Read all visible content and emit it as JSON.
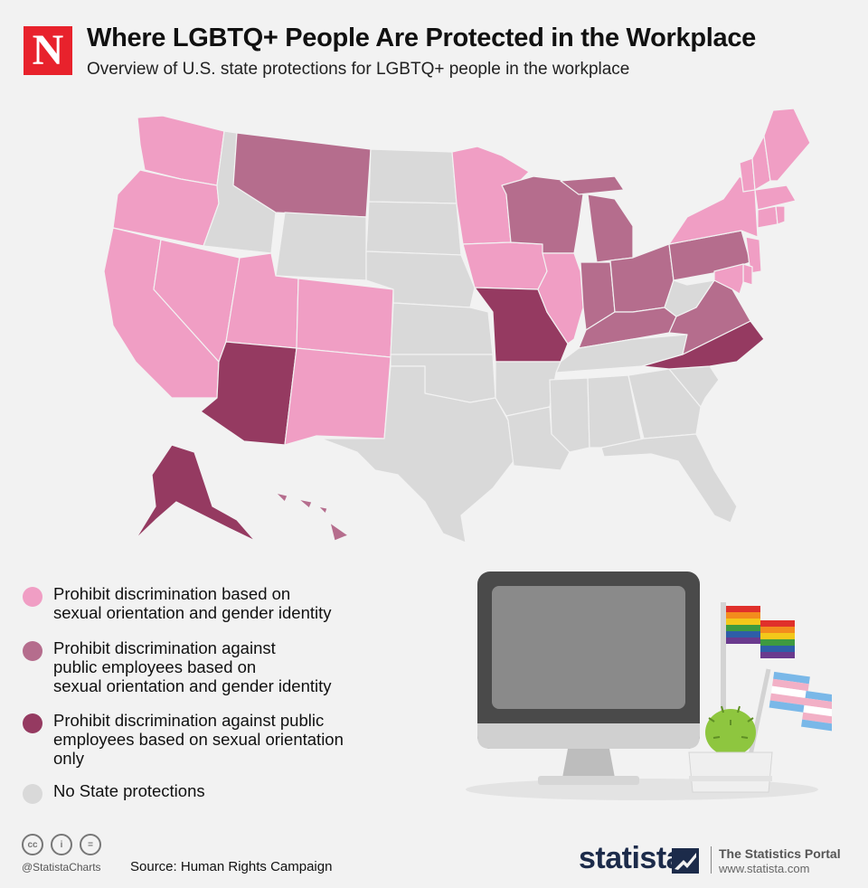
{
  "header": {
    "logo_letter": "N",
    "title": "Where LGBTQ+ People Are Protected in the Workplace",
    "subtitle": "Overview of U.S. state protections for LGBTQ+ people in the workplace"
  },
  "colors": {
    "full": "#f09ec4",
    "public_both": "#b56d8d",
    "public_orientation": "#953a61",
    "none": "#d9d9d9",
    "logo": "#e8222c"
  },
  "legend": [
    {
      "key": "full",
      "label": "Prohibit discrimination based on\nsexual orientation and gender identity"
    },
    {
      "key": "public_both",
      "label": "Prohibit discrimination against\npublic employees based on\nsexual orientation and gender identity"
    },
    {
      "key": "public_orientation",
      "label": "Prohibit discrimination against public\nemployees based on sexual orientation\nonly"
    },
    {
      "key": "none",
      "label": "No State protections"
    }
  ],
  "states": [
    {
      "id": "WA",
      "status": "full"
    },
    {
      "id": "OR",
      "status": "full"
    },
    {
      "id": "CA",
      "status": "full"
    },
    {
      "id": "NV",
      "status": "full"
    },
    {
      "id": "UT",
      "status": "full"
    },
    {
      "id": "CO",
      "status": "full"
    },
    {
      "id": "NM",
      "status": "full"
    },
    {
      "id": "MN",
      "status": "full"
    },
    {
      "id": "IA",
      "status": "full"
    },
    {
      "id": "IL",
      "status": "full"
    },
    {
      "id": "NY",
      "status": "full"
    },
    {
      "id": "VT",
      "status": "full"
    },
    {
      "id": "NH",
      "status": "full"
    },
    {
      "id": "ME",
      "status": "full"
    },
    {
      "id": "MA",
      "status": "full"
    },
    {
      "id": "CT",
      "status": "full"
    },
    {
      "id": "RI",
      "status": "full"
    },
    {
      "id": "NJ",
      "status": "full"
    },
    {
      "id": "DE",
      "status": "full"
    },
    {
      "id": "MD",
      "status": "full"
    },
    {
      "id": "MT",
      "status": "public_both"
    },
    {
      "id": "WI",
      "status": "public_both"
    },
    {
      "id": "MI",
      "status": "public_both"
    },
    {
      "id": "IN",
      "status": "public_both"
    },
    {
      "id": "OH",
      "status": "public_both"
    },
    {
      "id": "KY",
      "status": "public_both"
    },
    {
      "id": "PA",
      "status": "public_both"
    },
    {
      "id": "VA",
      "status": "public_both"
    },
    {
      "id": "HI",
      "status": "public_both"
    },
    {
      "id": "AZ",
      "status": "public_orientation"
    },
    {
      "id": "MO",
      "status": "public_orientation"
    },
    {
      "id": "NC",
      "status": "public_orientation"
    },
    {
      "id": "AK",
      "status": "public_orientation"
    },
    {
      "id": "ID",
      "status": "none"
    },
    {
      "id": "WY",
      "status": "none"
    },
    {
      "id": "ND",
      "status": "none"
    },
    {
      "id": "SD",
      "status": "none"
    },
    {
      "id": "NE",
      "status": "none"
    },
    {
      "id": "KS",
      "status": "none"
    },
    {
      "id": "OK",
      "status": "none"
    },
    {
      "id": "TX",
      "status": "none"
    },
    {
      "id": "AR",
      "status": "none"
    },
    {
      "id": "LA",
      "status": "none"
    },
    {
      "id": "MS",
      "status": "none"
    },
    {
      "id": "AL",
      "status": "none"
    },
    {
      "id": "GA",
      "status": "none"
    },
    {
      "id": "FL",
      "status": "none"
    },
    {
      "id": "SC",
      "status": "none"
    },
    {
      "id": "TN",
      "status": "none"
    },
    {
      "id": "WV",
      "status": "none"
    }
  ],
  "footer": {
    "cc_icons": [
      "cc-icon",
      "attribution-icon",
      "no-derivatives-icon"
    ],
    "cc_glyphs": [
      "cc",
      "i",
      "="
    ],
    "handle": "@StatistaCharts",
    "source": "Source: Human Rights Campaign",
    "brand": "statista",
    "portal_title": "The Statistics Portal",
    "portal_url": "www.statista.com"
  }
}
